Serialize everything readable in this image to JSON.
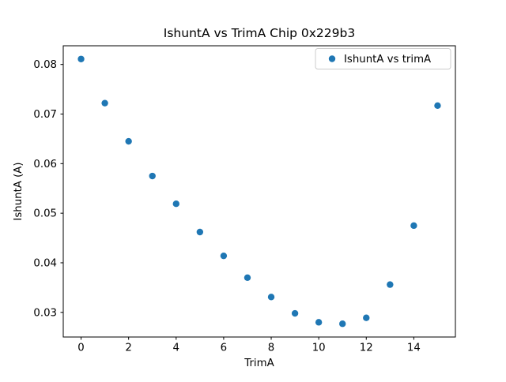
{
  "figure": {
    "background": "#ffffff"
  },
  "chart_data": {
    "type": "scatter",
    "title": "IshuntA vs TrimA Chip 0x229b3",
    "xlabel": "TrimA",
    "ylabel": "IshuntA (A)",
    "legend": [
      "IshuntA vs trimA"
    ],
    "legend_position": "upper right",
    "marker_color": "#1f77b4",
    "grid": false,
    "x": [
      0,
      1,
      2,
      3,
      4,
      5,
      6,
      7,
      8,
      9,
      10,
      11,
      12,
      13,
      14,
      15
    ],
    "y": [
      0.0811,
      0.0722,
      0.0645,
      0.0575,
      0.0519,
      0.0462,
      0.0414,
      0.037,
      0.0331,
      0.0298,
      0.028,
      0.0277,
      0.0289,
      0.0356,
      0.0475,
      0.0717
    ],
    "xlim": [
      -0.75,
      15.75
    ],
    "ylim": [
      0.02503,
      0.08377
    ],
    "xticks": [
      0,
      2,
      4,
      6,
      8,
      10,
      12,
      14
    ],
    "yticks": [
      0.03,
      0.04,
      0.05,
      0.06,
      0.07,
      0.08
    ]
  }
}
